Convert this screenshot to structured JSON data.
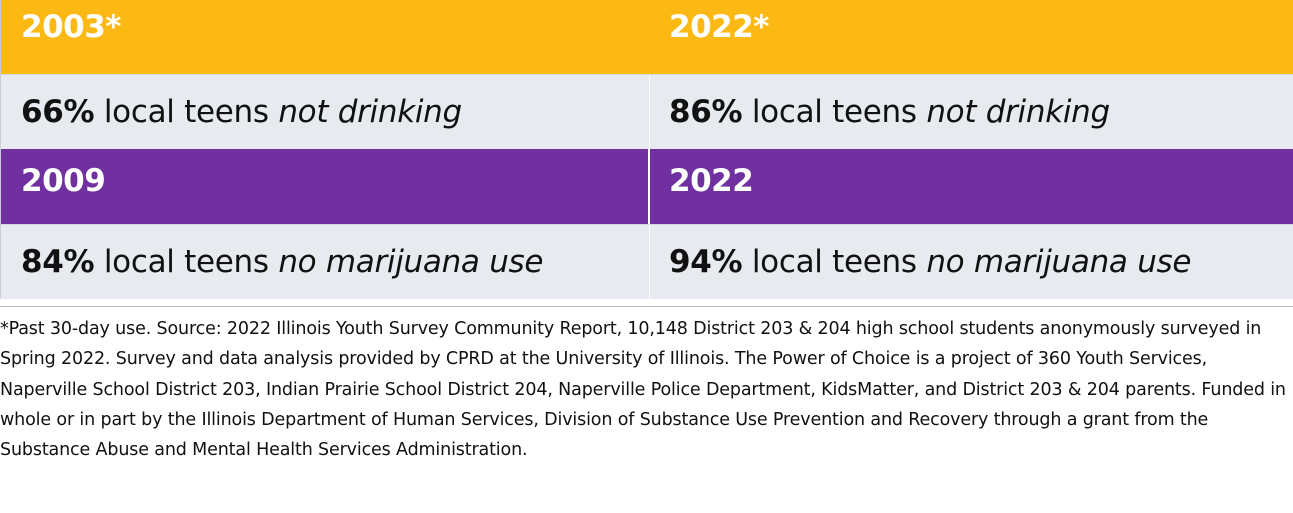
{
  "colors": {
    "orange": "#FDB913",
    "purple": "#7030A0",
    "row_background": "#E7EAEF"
  },
  "table": {
    "alcohol": {
      "header_left": "2003*",
      "header_right": "2022*",
      "left": {
        "percent": "66%",
        "text": " local teens ",
        "emphasis": "not drinking"
      },
      "right": {
        "percent": "86%",
        "text": " local teens ",
        "emphasis": "not drinking"
      }
    },
    "marijuana": {
      "header_left": "2009",
      "header_right": "2022",
      "left": {
        "percent": "84%",
        "text": " local teens ",
        "emphasis": "no marijuana use"
      },
      "right": {
        "percent": "94%",
        "text": " local teens ",
        "emphasis": "no marijuana use"
      }
    }
  },
  "footnote": "*Past 30-day use. Source: 2022 Illinois Youth Survey Community Report, 10,148 District 203 & 204 high school students anonymously surveyed in Spring 2022. Survey and data analysis provided by CPRD at the University of Illinois. The Power of Choice is a project of 360 Youth Services, Naperville School District 203, Indian Prairie School District 204, Naperville Police Department, KidsMatter, and District 203 & 204 parents. Funded in whole or in part by the Illinois Department of Human Services, Division of Substance Use Prevention and Recovery through a grant from the Substance Abuse and Mental Health Services Administration."
}
